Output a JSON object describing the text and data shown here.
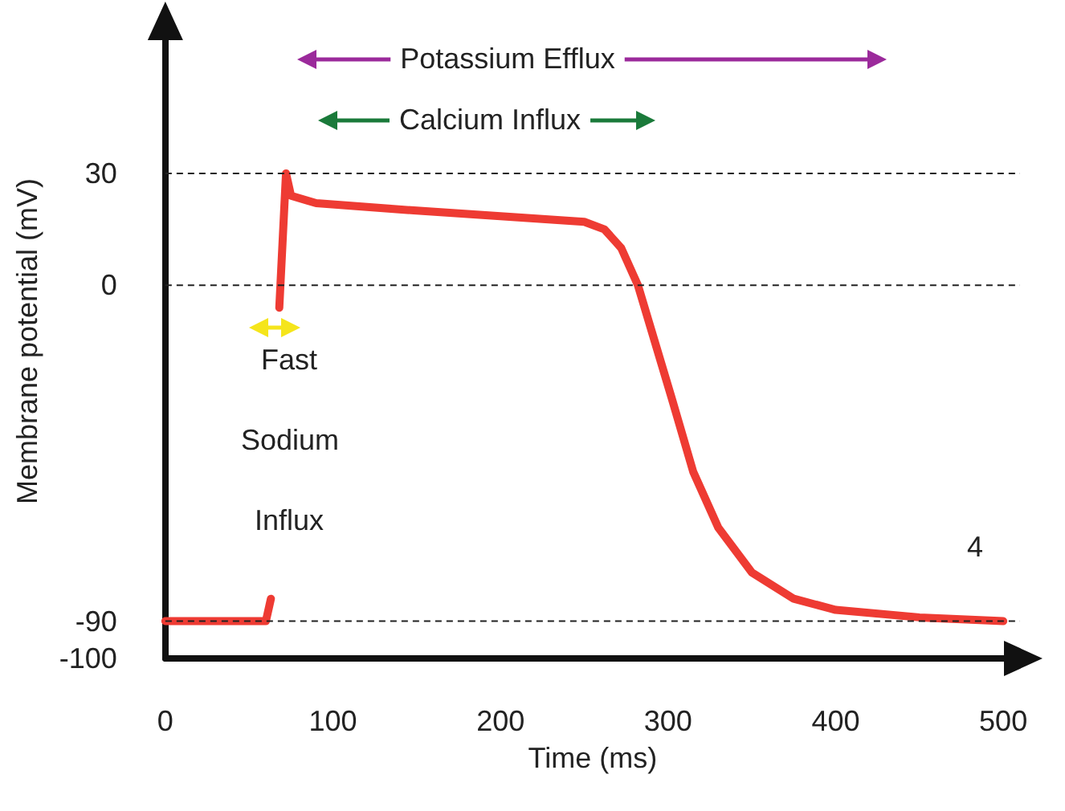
{
  "chart_data": {
    "type": "line",
    "xlabel": "Time (ms)",
    "ylabel": "Membrane potential (mV)",
    "x": [
      0,
      60,
      63,
      64,
      68,
      72,
      75,
      90,
      150,
      250,
      262,
      272,
      282,
      292,
      302,
      315,
      330,
      350,
      375,
      400,
      450,
      500
    ],
    "series": [
      {
        "color": "#ee3b33",
        "values": [
          -90,
          -90,
          -84,
          null,
          -6,
          30,
          24,
          22,
          20,
          17,
          15,
          10,
          0,
          -15,
          -30,
          -50,
          -65,
          -77,
          -84,
          -87,
          -89,
          -90
        ]
      }
    ],
    "xlim": [
      0,
      510
    ],
    "xticks": [
      0,
      100,
      200,
      300,
      400,
      500
    ],
    "ylim": [
      -100,
      70
    ],
    "yticks": [
      -100,
      -90,
      0,
      30
    ],
    "grid": "y",
    "marker": "none",
    "line_style": "solid",
    "annotations": [
      "Potassium Efflux",
      "Calcium Influx",
      "Fast Sodium Influx",
      "4"
    ]
  }
}
